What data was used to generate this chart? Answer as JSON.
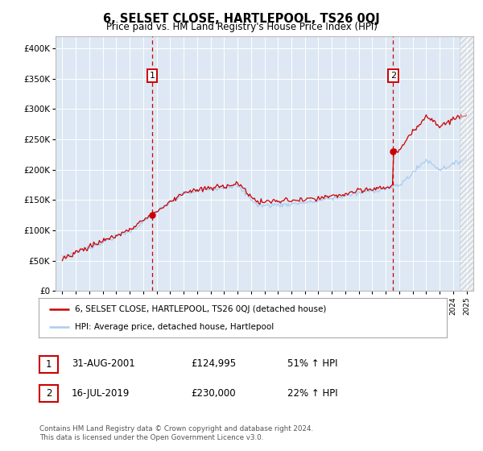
{
  "title": "6, SELSET CLOSE, HARTLEPOOL, TS26 0QJ",
  "subtitle": "Price paid vs. HM Land Registry's House Price Index (HPI)",
  "ylim": [
    0,
    420000
  ],
  "yticks": [
    0,
    50000,
    100000,
    150000,
    200000,
    250000,
    300000,
    350000,
    400000
  ],
  "ytick_labels": [
    "£0",
    "£50K",
    "£100K",
    "£150K",
    "£200K",
    "£250K",
    "£300K",
    "£350K",
    "£400K"
  ],
  "purchase1_year": 2001.67,
  "purchase1_price": 124995,
  "purchase2_year": 2019.54,
  "purchase2_price": 230000,
  "red_line_color": "#cc0000",
  "blue_line_color": "#aaccee",
  "dashed_line_color": "#cc0000",
  "plot_bg": "#dde8f4",
  "legend_label_red": "6, SELSET CLOSE, HARTLEPOOL, TS26 0QJ (detached house)",
  "legend_label_blue": "HPI: Average price, detached house, Hartlepool",
  "table_row1": [
    "1",
    "31-AUG-2001",
    "£124,995",
    "51% ↑ HPI"
  ],
  "table_row2": [
    "2",
    "16-JUL-2019",
    "£230,000",
    "22% ↑ HPI"
  ],
  "footer": "Contains HM Land Registry data © Crown copyright and database right 2024.\nThis data is licensed under the Open Government Licence v3.0.",
  "hatched_region_start": 2024.5,
  "xlim_left": 1994.5,
  "xlim_right": 2025.5
}
